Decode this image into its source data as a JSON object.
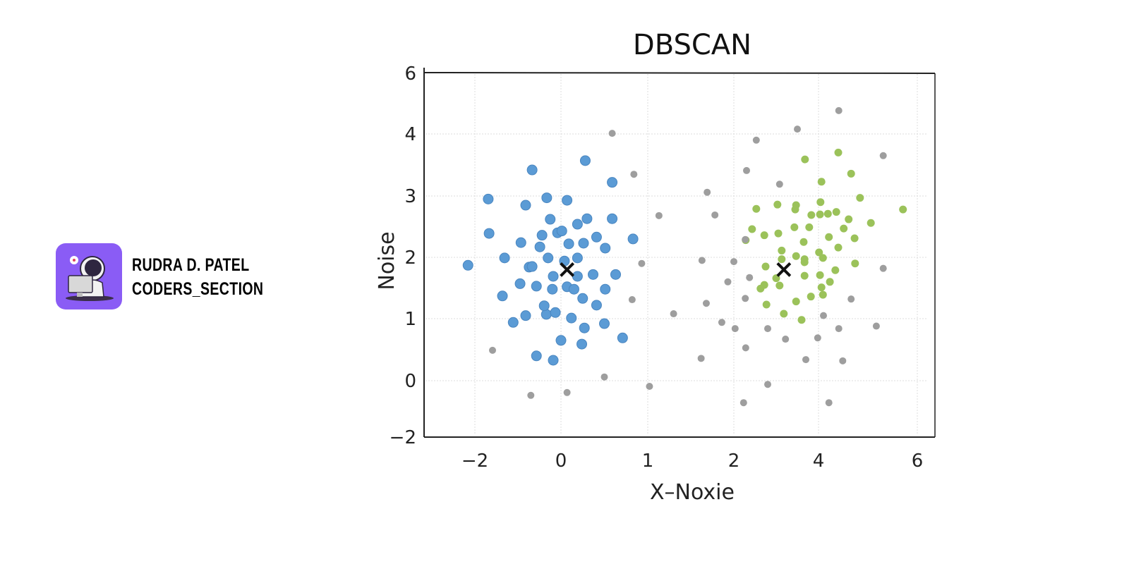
{
  "branding": {
    "name": "RUDRA D. PATEL",
    "handle": "CODERS_SECTION",
    "logo_color": "#8a5cf5",
    "logo_icon": "astronaut-at-computer-icon"
  },
  "chart_data": {
    "type": "scatter",
    "title": "DBSCAN",
    "xlabel": "X–Noxie",
    "ylabel": "Noise",
    "xticks": [
      "−2",
      "0",
      "1",
      "2",
      "4",
      "6"
    ],
    "xtick_values": [
      -2,
      0,
      1,
      2,
      4,
      6
    ],
    "yticks": [
      "6",
      "4",
      "3",
      "2",
      "1",
      "0",
      "−2"
    ],
    "ytick_values": [
      6,
      4,
      3,
      2,
      1,
      0,
      -2
    ],
    "grid": true,
    "legend": "none",
    "series": [
      {
        "color": "#5b9bd5",
        "points": [
          [
            -2.16,
            1.87
          ],
          [
            -1.69,
            2.95
          ],
          [
            -1.67,
            2.39
          ],
          [
            -0.67,
            3.42
          ],
          [
            0.28,
            3.57
          ],
          [
            0.59,
            3.22
          ],
          [
            -0.82,
            2.85
          ],
          [
            -0.33,
            2.97
          ],
          [
            0.07,
            2.93
          ],
          [
            -1.31,
            1.99
          ],
          [
            -0.74,
            1.84
          ],
          [
            -0.95,
            1.57
          ],
          [
            -0.57,
            1.53
          ],
          [
            -1.36,
            1.37
          ],
          [
            -1.11,
            0.94
          ],
          [
            -0.82,
            1.05
          ],
          [
            -0.34,
            1.07
          ],
          [
            -0.39,
            1.21
          ],
          [
            -0.2,
            1.48
          ],
          [
            0.07,
            1.52
          ],
          [
            0.15,
            1.48
          ],
          [
            0.25,
            1.33
          ],
          [
            0.41,
            1.22
          ],
          [
            0.27,
            0.85
          ],
          [
            0.5,
            0.92
          ],
          [
            0.71,
            0.69
          ],
          [
            0.12,
            1.01
          ],
          [
            -0.13,
            1.1
          ],
          [
            0.0,
            0.65
          ],
          [
            0.24,
            0.59
          ],
          [
            -0.57,
            0.4
          ],
          [
            -0.18,
            0.33
          ],
          [
            -0.93,
            2.24
          ],
          [
            -0.44,
            2.36
          ],
          [
            -0.08,
            2.4
          ],
          [
            0.09,
            2.22
          ],
          [
            0.26,
            2.23
          ],
          [
            0.41,
            2.33
          ],
          [
            0.59,
            2.63
          ],
          [
            0.83,
            2.3
          ],
          [
            -0.25,
            2.62
          ],
          [
            0.01,
            2.43
          ],
          [
            0.19,
            2.54
          ],
          [
            0.3,
            2.63
          ],
          [
            0.51,
            2.15
          ],
          [
            0.63,
            1.72
          ],
          [
            0.51,
            1.48
          ],
          [
            0.37,
            1.72
          ],
          [
            0.19,
            1.99
          ],
          [
            0.04,
            1.94
          ],
          [
            -0.3,
            1.99
          ],
          [
            -0.18,
            1.69
          ],
          [
            -0.49,
            2.17
          ],
          [
            -0.67,
            1.85
          ],
          [
            0.19,
            1.69
          ]
        ]
      },
      {
        "color": "#9bc25a",
        "points": [
          [
            2.53,
            2.79
          ],
          [
            3.03,
            2.86
          ],
          [
            3.47,
            2.85
          ],
          [
            3.68,
            3.59
          ],
          [
            3.45,
            2.78
          ],
          [
            3.83,
            2.69
          ],
          [
            4.04,
            2.9
          ],
          [
            4.03,
            2.7
          ],
          [
            4.19,
            2.71
          ],
          [
            4.36,
            2.74
          ],
          [
            4.61,
            2.62
          ],
          [
            4.84,
            2.97
          ],
          [
            4.4,
            3.7
          ],
          [
            4.66,
            3.36
          ],
          [
            4.06,
            3.23
          ],
          [
            5.06,
            2.56
          ],
          [
            5.71,
            2.78
          ],
          [
            2.43,
            2.46
          ],
          [
            2.28,
            2.28
          ],
          [
            2.72,
            2.36
          ],
          [
            3.05,
            2.39
          ],
          [
            3.43,
            2.49
          ],
          [
            3.78,
            2.49
          ],
          [
            3.65,
            2.25
          ],
          [
            4.21,
            2.33
          ],
          [
            4.51,
            2.47
          ],
          [
            4.73,
            2.31
          ],
          [
            4.4,
            2.16
          ],
          [
            4.01,
            2.08
          ],
          [
            3.67,
            1.97
          ],
          [
            3.13,
            2.11
          ],
          [
            3.47,
            2.02
          ],
          [
            3.13,
            1.97
          ],
          [
            2.75,
            1.85
          ],
          [
            3.0,
            1.66
          ],
          [
            2.72,
            1.55
          ],
          [
            2.63,
            1.49
          ],
          [
            3.08,
            1.54
          ],
          [
            3.67,
            1.7
          ],
          [
            3.67,
            1.92
          ],
          [
            4.09,
            1.99
          ],
          [
            4.03,
            1.71
          ],
          [
            4.34,
            1.79
          ],
          [
            4.74,
            1.9
          ],
          [
            4.06,
            1.51
          ],
          [
            3.82,
            1.36
          ],
          [
            3.47,
            1.28
          ],
          [
            2.77,
            1.23
          ],
          [
            3.18,
            1.08
          ],
          [
            3.6,
            0.98
          ],
          [
            4.23,
            1.6
          ],
          [
            4.09,
            1.39
          ]
        ]
      },
      {
        "color": "#9e9e9e",
        "points": [
          [
            0.59,
            4.02
          ],
          [
            0.84,
            3.35
          ],
          [
            1.13,
            2.68
          ],
          [
            0.93,
            1.9
          ],
          [
            0.82,
            1.31
          ],
          [
            1.3,
            1.08
          ],
          [
            1.02,
            -0.2
          ],
          [
            0.5,
            0.06
          ],
          [
            0.07,
            -0.42
          ],
          [
            -0.7,
            -0.52
          ],
          [
            -1.59,
            0.49
          ],
          [
            1.69,
            3.06
          ],
          [
            1.78,
            2.69
          ],
          [
            1.63,
            1.95
          ],
          [
            1.93,
            1.6
          ],
          [
            1.68,
            1.25
          ],
          [
            1.86,
            0.94
          ],
          [
            2.03,
            0.84
          ],
          [
            2.0,
            1.93
          ],
          [
            2.27,
            2.29
          ],
          [
            2.37,
            1.67
          ],
          [
            2.27,
            1.33
          ],
          [
            2.28,
            0.53
          ],
          [
            2.23,
            -0.78
          ],
          [
            2.53,
            3.9
          ],
          [
            2.3,
            3.41
          ],
          [
            3.08,
            3.19
          ],
          [
            3.5,
            4.16
          ],
          [
            4.41,
            4.77
          ],
          [
            5.31,
            3.65
          ],
          [
            5.31,
            1.82
          ],
          [
            5.17,
            0.88
          ],
          [
            4.66,
            1.32
          ],
          [
            4.41,
            0.84
          ],
          [
            4.49,
            0.32
          ],
          [
            4.21,
            -0.78
          ],
          [
            3.98,
            0.69
          ],
          [
            4.1,
            1.05
          ],
          [
            3.7,
            0.34
          ],
          [
            3.22,
            0.67
          ],
          [
            2.8,
            0.84
          ],
          [
            2.8,
            -0.13
          ],
          [
            1.62,
            0.36
          ]
        ]
      }
    ],
    "centroids": {
      "marker": "x",
      "color": "#111111",
      "points": [
        [
          0.07,
          1.8
        ],
        [
          3.18,
          1.8
        ]
      ]
    }
  }
}
